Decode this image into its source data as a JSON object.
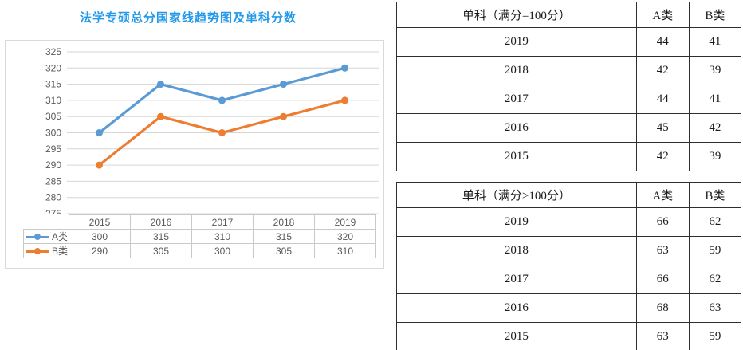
{
  "page": {
    "title": "法学专硕总分国家线趋势图及单科分数"
  },
  "colors": {
    "title": "#2499ea",
    "series_a": "#5B9BD5",
    "series_b": "#ED7D31",
    "gridline": "#d6d6d6",
    "chart_text": "#595959",
    "chart_table_border": "#c9c9c9",
    "score_table_border": "#2e2e2e"
  },
  "chart_data": {
    "type": "line",
    "title": "法学专硕总分国家线趋势图及单科分数",
    "categories": [
      "2015",
      "2016",
      "2017",
      "2018",
      "2019"
    ],
    "series": [
      {
        "name": "A类",
        "color": "#5B9BD5",
        "values": [
          300,
          315,
          310,
          315,
          320
        ]
      },
      {
        "name": "B类",
        "color": "#ED7D31",
        "values": [
          290,
          305,
          300,
          305,
          310
        ]
      }
    ],
    "ylim": [
      275,
      325
    ],
    "ytick_step": 5,
    "grid": true,
    "marker": "circle",
    "legend_position": "left-of-data-table",
    "has_data_table": true
  },
  "score_tables": [
    {
      "name": "single-subject-full-score-equals-100",
      "header": {
        "label": "单科（满分=100分）",
        "col_a": "A类",
        "col_b": "B类"
      },
      "rows": [
        {
          "year": "2019",
          "a": "44",
          "b": "41"
        },
        {
          "year": "2018",
          "a": "42",
          "b": "39"
        },
        {
          "year": "2017",
          "a": "44",
          "b": "41"
        },
        {
          "year": "2016",
          "a": "45",
          "b": "42"
        },
        {
          "year": "2015",
          "a": "42",
          "b": "39"
        }
      ]
    },
    {
      "name": "single-subject-full-score-over-100",
      "header": {
        "label": "单科（满分>100分）",
        "col_a": "A类",
        "col_b": "B类"
      },
      "rows": [
        {
          "year": "2019",
          "a": "66",
          "b": "62"
        },
        {
          "year": "2018",
          "a": "63",
          "b": "59"
        },
        {
          "year": "2017",
          "a": "66",
          "b": "62"
        },
        {
          "year": "2016",
          "a": "68",
          "b": "63"
        },
        {
          "year": "2015",
          "a": "63",
          "b": "59"
        }
      ]
    }
  ]
}
